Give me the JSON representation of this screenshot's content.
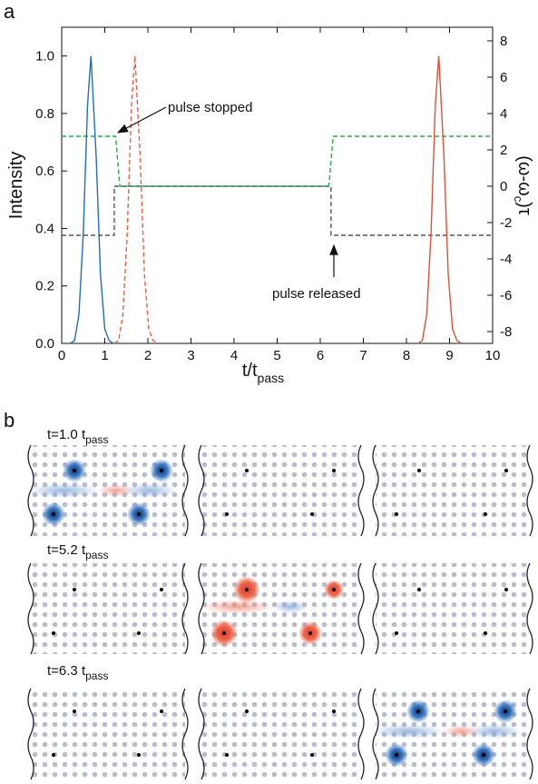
{
  "panel_labels": [
    "a",
    "b"
  ],
  "chart_data": {
    "type": "line",
    "xlabel": "t/t",
    "xlabel_subscript": "pass",
    "ylabel": "Intensity",
    "y2label": "(ω-ω",
    "y2label_subscript": "c",
    "y2label_tail": ")τ",
    "xlim": [
      0,
      10
    ],
    "xticks": [
      0,
      1,
      2,
      3,
      4,
      5,
      6,
      7,
      8,
      9,
      10
    ],
    "ylim": [
      0,
      1.1
    ],
    "yticks": [
      {
        "value": 0,
        "label": "0.0"
      },
      {
        "value": 0.2,
        "label": "0.2"
      },
      {
        "value": 0.4,
        "label": "0.4"
      },
      {
        "value": 0.6,
        "label": "0.6"
      },
      {
        "value": 0.8,
        "label": "0.8"
      },
      {
        "value": 1,
        "label": "1.0"
      }
    ],
    "y2lim": [
      -8.65,
      8.75
    ],
    "y2ticks": [
      -8,
      -6,
      -4,
      -2,
      0,
      2,
      4,
      6,
      8
    ],
    "series": [
      {
        "color": "#555555",
        "dash": true,
        "axis": "y2",
        "x": [
          0,
          1.22,
          1.22,
          6.25,
          6.25,
          10
        ],
        "values": [
          -2.7,
          -2.7,
          0,
          0,
          -2.7,
          -2.7
        ]
      },
      {
        "color": "#2aa84a",
        "dash": true,
        "axis": "y2",
        "x": [
          0,
          1.25,
          1.35,
          6.2,
          6.3,
          10
        ],
        "values": [
          2.75,
          2.75,
          0,
          0,
          2.75,
          2.75
        ]
      },
      {
        "color": "#1f6fb5",
        "dash": false,
        "x": [
          0.2,
          0.3,
          0.4,
          0.5,
          0.6,
          0.68,
          0.8,
          0.9,
          1.0,
          1.1,
          1.2
        ],
        "values": [
          0,
          0.01,
          0.1,
          0.38,
          0.83,
          1.0,
          0.65,
          0.24,
          0.05,
          0.01,
          0
        ]
      },
      {
        "color": "#e8604a",
        "dash": true,
        "x": [
          1.22,
          1.32,
          1.42,
          1.52,
          1.62,
          1.7,
          1.82,
          1.92,
          2.02,
          2.12,
          2.22
        ],
        "values": [
          0,
          0.01,
          0.1,
          0.38,
          0.83,
          1.0,
          0.65,
          0.24,
          0.05,
          0.01,
          0
        ]
      },
      {
        "color": "#d9533a",
        "dash": false,
        "x": [
          8.27,
          8.37,
          8.47,
          8.57,
          8.67,
          8.75,
          8.87,
          8.97,
          9.07,
          9.17,
          9.27
        ],
        "values": [
          0,
          0.01,
          0.1,
          0.38,
          0.83,
          1.0,
          0.65,
          0.24,
          0.05,
          0.01,
          0
        ]
      }
    ],
    "annotations": [
      {
        "text": "pulse stopped"
      },
      {
        "text": "pulse released"
      }
    ]
  },
  "panel_b": {
    "rows": [
      {
        "label": "t=1.0 t",
        "subscript": "pass"
      },
      {
        "label": "t=5.2 t",
        "subscript": "pass"
      },
      {
        "label": "t=6.3 t",
        "subscript": "pass"
      }
    ]
  }
}
